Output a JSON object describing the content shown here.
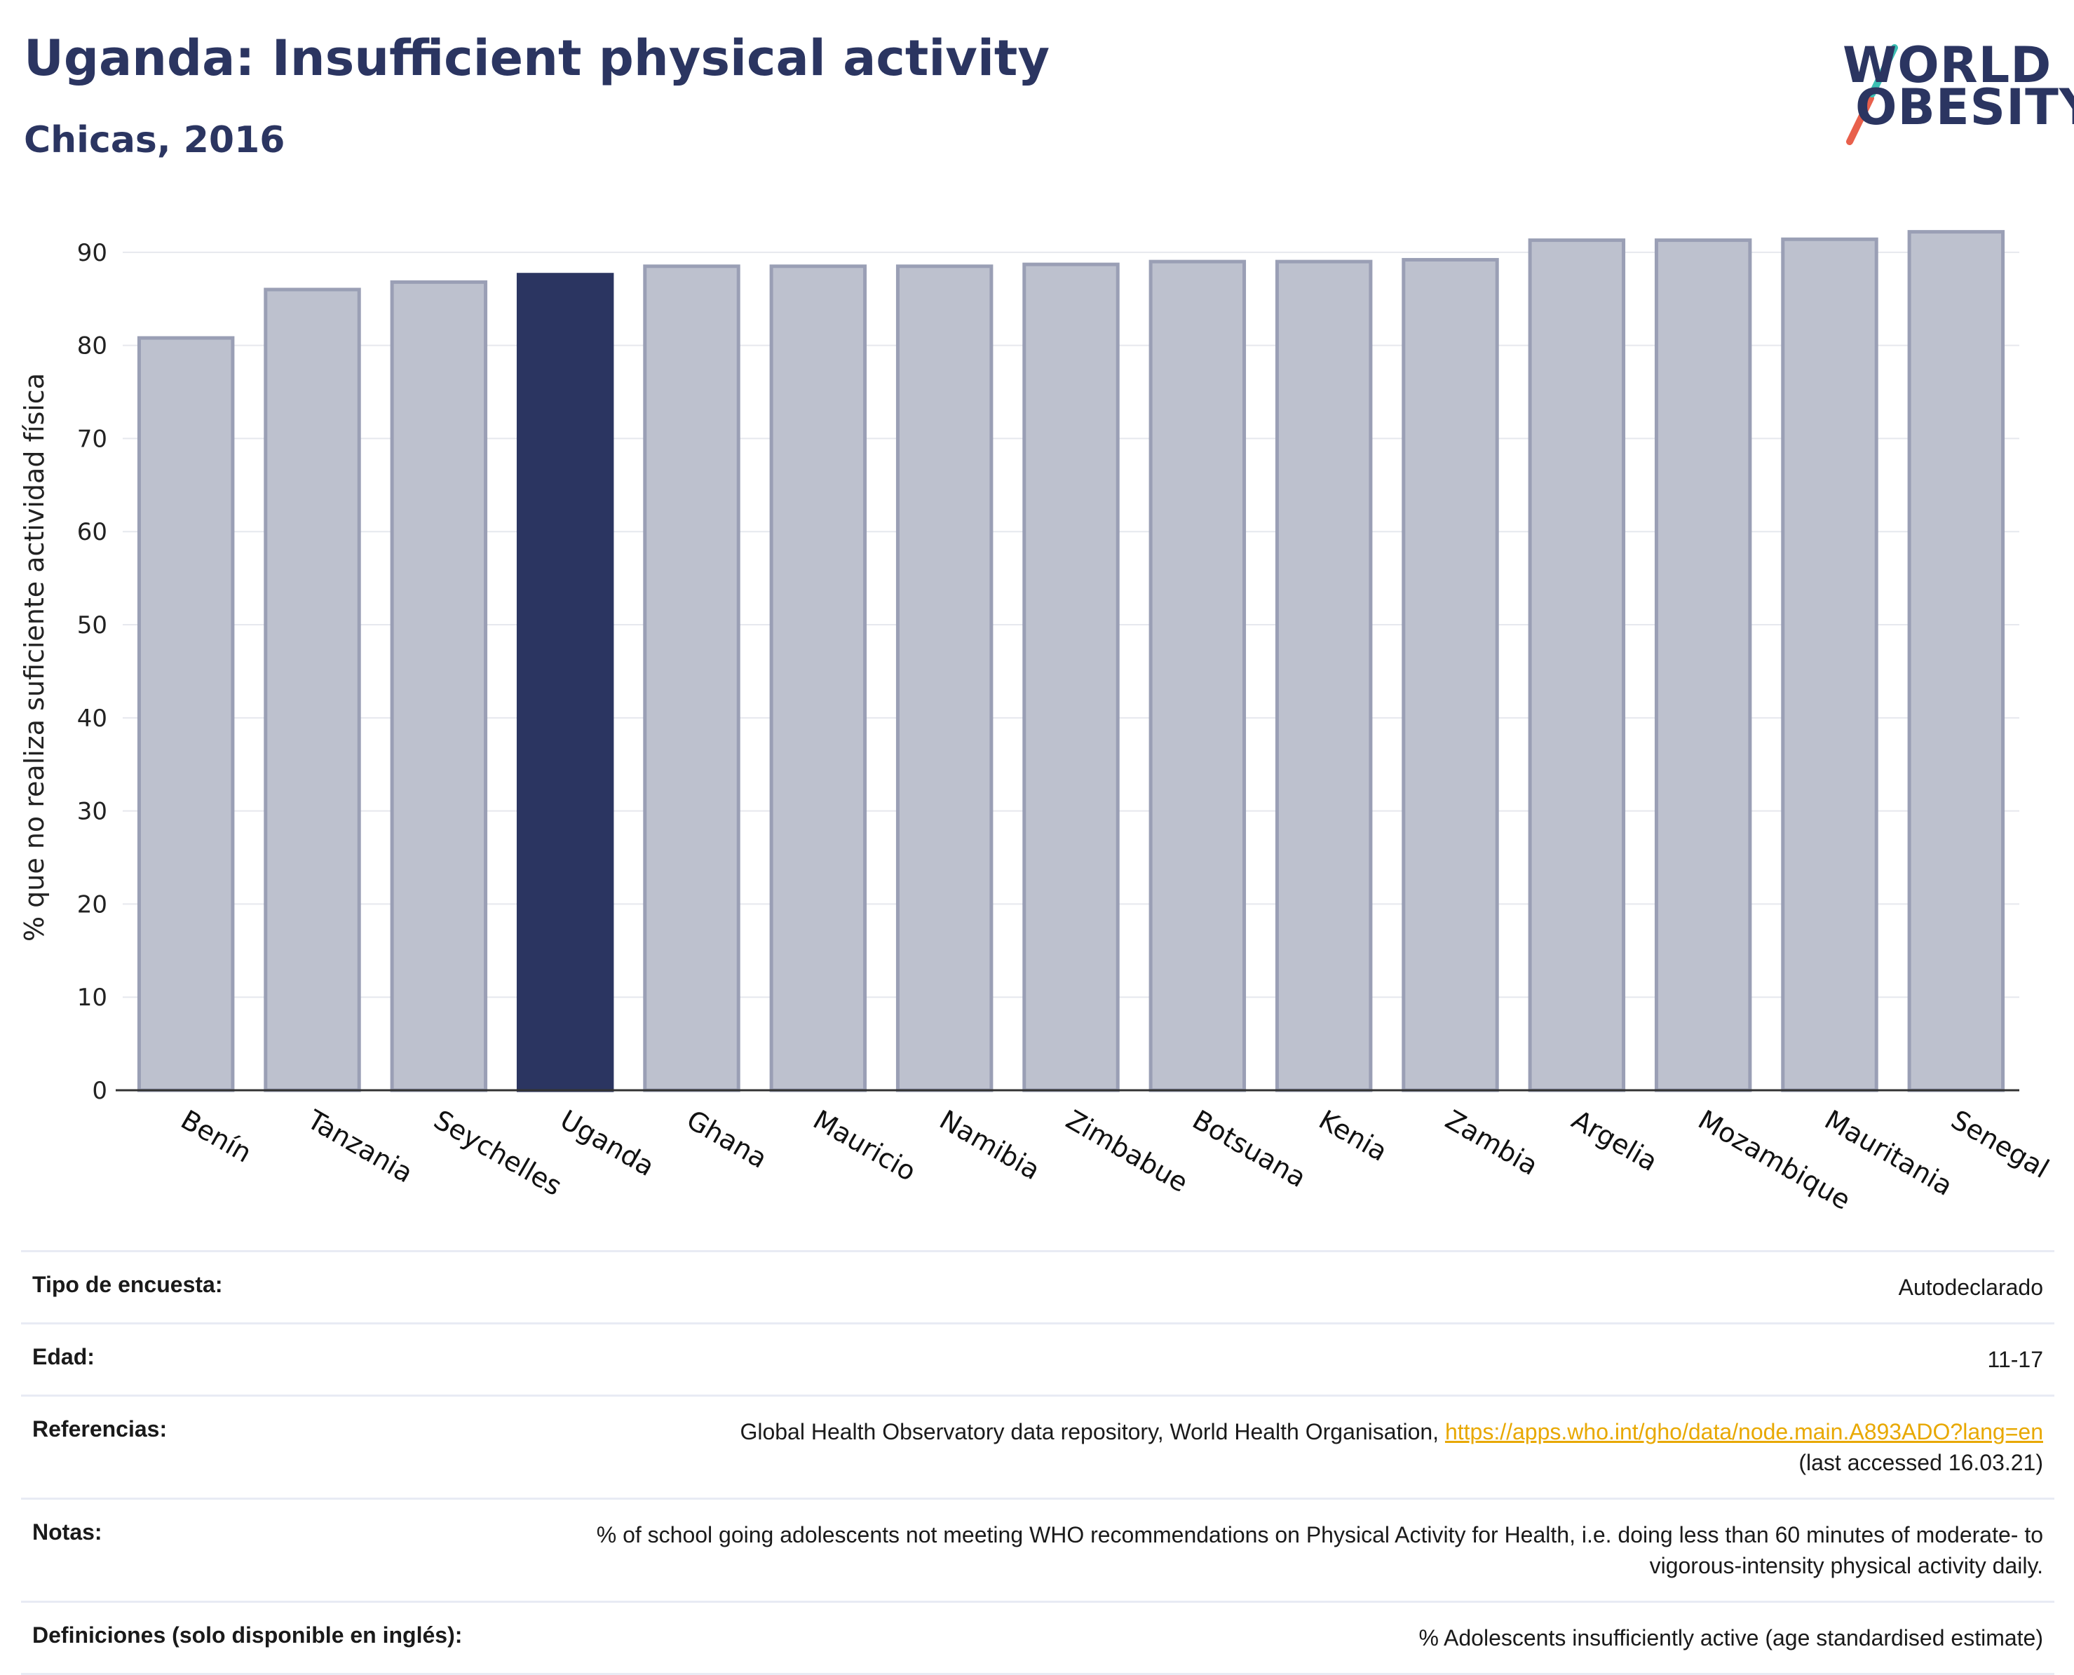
{
  "header": {
    "title": "Uganda: Insufficient physical activity",
    "subtitle": "Chicas, 2016",
    "logo": {
      "line1": "WORLD",
      "line2": "OBESITY"
    }
  },
  "colors": {
    "highlight": "#2b3561",
    "bar": "#bdc1ce",
    "bar_stroke": "#9a9fb5",
    "accent_teal": "#3bbfb3",
    "accent_red": "#e8604c"
  },
  "chart_data": {
    "type": "bar",
    "title": "Uganda: Insufficient physical activity",
    "subtitle": "Chicas, 2016",
    "ylabel": "% que no realiza suficiente actividad física",
    "xlabel": "",
    "ylim": [
      0,
      93
    ],
    "yticks": [
      0,
      10,
      20,
      30,
      40,
      50,
      60,
      70,
      80,
      90
    ],
    "grid": true,
    "highlight": "Uganda",
    "categories": [
      "Benín",
      "Tanzania",
      "Seychelles",
      "Uganda",
      "Ghana",
      "Mauricio",
      "Namibia",
      "Zimbabue",
      "Botsuana",
      "Kenia",
      "Zambia",
      "Argelia",
      "Mozambique",
      "Mauritania",
      "Senegal"
    ],
    "values": [
      80.8,
      86.0,
      86.8,
      87.6,
      88.5,
      88.5,
      88.5,
      88.7,
      89.0,
      89.0,
      89.2,
      91.3,
      91.3,
      91.4,
      92.2
    ]
  },
  "info": {
    "rows": [
      {
        "key": "Tipo de encuesta:",
        "value": "Autodeclarado"
      },
      {
        "key": "Edad:",
        "value": "11-17"
      },
      {
        "key": "Referencias:",
        "value": "Global Health Observatory data repository, World Health Organisation,",
        "link": "https://apps.who.int/gho/data/node.main.A893ADO?lang=en",
        "value2": "(last accessed 16.03.21)"
      },
      {
        "key": "Notas:",
        "value": "% of school going adolescents not meeting WHO recommendations on Physical Activity for Health, i.e. doing less than 60 minutes of moderate- to vigorous-intensity physical activity daily."
      },
      {
        "key": "Definiciones (solo disponible en inglés):",
        "value": "% Adolescents insufficiently active (age standardised estimate)"
      }
    ]
  }
}
